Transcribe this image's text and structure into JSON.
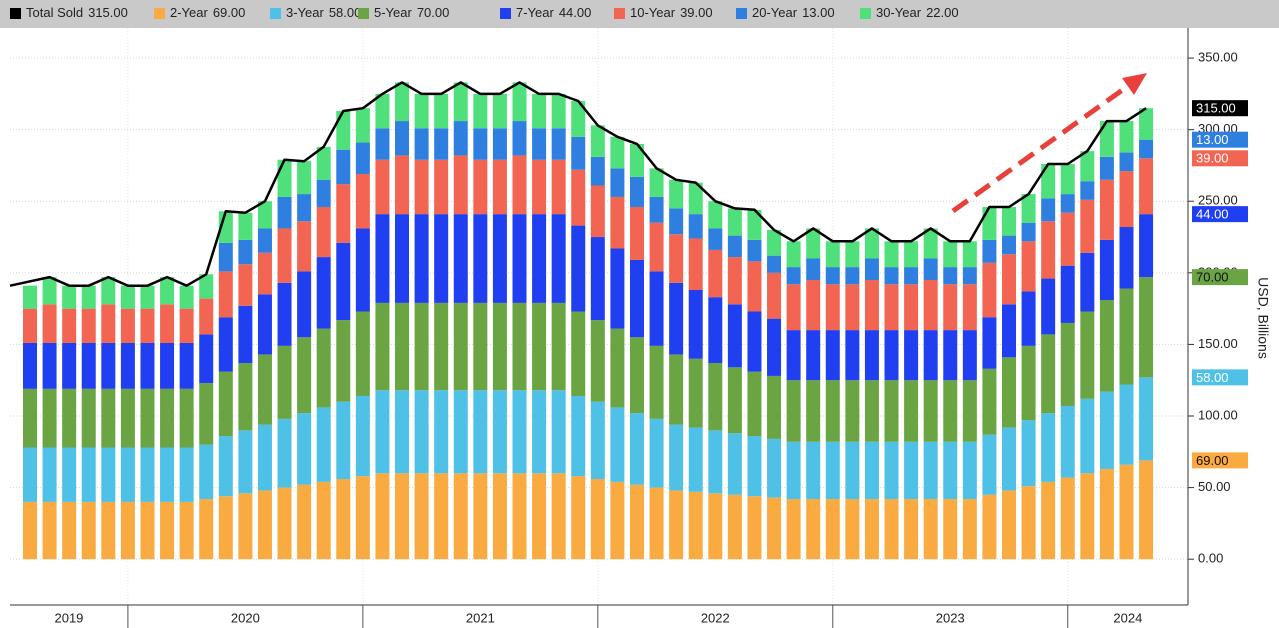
{
  "chart_data": {
    "type": "stacked_bar",
    "y_axis_label": "USD, Billions",
    "xticks": [
      "2019",
      "2020",
      "2021",
      "2022",
      "2023",
      "2024"
    ],
    "ylim": [
      -32,
      371
    ],
    "yticks": [
      {
        "value": 0,
        "label": "0.00"
      },
      {
        "value": 50,
        "label": "50.00"
      },
      {
        "value": 100,
        "label": "100.00"
      },
      {
        "value": 150,
        "label": "150.00"
      },
      {
        "value": 200,
        "label": "200.00"
      },
      {
        "value": 250,
        "label": "250.00"
      },
      {
        "value": 300,
        "label": "300.00"
      },
      {
        "value": 350,
        "label": "350.00"
      }
    ],
    "grid": true,
    "total": {
      "name": "Total Sold",
      "color": "#000000",
      "latest_label": "315.00",
      "values": [
        191,
        197,
        191,
        191,
        197,
        191,
        191,
        197,
        191,
        199,
        243,
        242,
        250,
        279,
        278,
        288,
        313,
        315,
        325,
        333,
        325,
        325,
        333,
        325,
        325,
        333,
        325,
        325,
        320,
        303,
        295,
        290,
        273,
        265,
        263,
        250,
        245,
        244,
        230,
        222,
        231,
        222,
        222,
        231,
        222,
        222,
        231,
        222,
        222,
        246,
        246,
        255,
        276,
        276,
        285,
        306,
        306,
        315
      ]
    },
    "series": [
      {
        "name": "2-Year",
        "color": "#f9ab42",
        "latest_label": "69.00",
        "values": [
          40,
          40,
          40,
          40,
          40,
          40,
          40,
          40,
          40,
          42,
          44,
          46,
          48,
          50,
          52,
          54,
          56,
          58,
          60,
          60,
          60,
          60,
          60,
          60,
          60,
          60,
          60,
          60,
          58,
          56,
          54,
          52,
          50,
          48,
          47,
          46,
          45,
          44,
          43,
          42,
          42,
          42,
          42,
          42,
          42,
          42,
          42,
          42,
          42,
          45,
          48,
          51,
          54,
          57,
          60,
          63,
          66,
          69
        ]
      },
      {
        "name": "3-Year",
        "color": "#4fc1e6",
        "latest_label": "58.00",
        "values": [
          38,
          38,
          38,
          38,
          38,
          38,
          38,
          38,
          38,
          38,
          42,
          44,
          46,
          48,
          50,
          52,
          54,
          56,
          58,
          58,
          58,
          58,
          58,
          58,
          58,
          58,
          58,
          58,
          56,
          54,
          52,
          50,
          48,
          46,
          45,
          44,
          43,
          42,
          41,
          40,
          40,
          40,
          40,
          40,
          40,
          40,
          40,
          40,
          40,
          42,
          44,
          46,
          48,
          50,
          52,
          54,
          56,
          58
        ]
      },
      {
        "name": "5-Year",
        "color": "#6aa443",
        "latest_label": "70.00",
        "values": [
          41,
          41,
          41,
          41,
          41,
          41,
          41,
          41,
          41,
          43,
          45,
          47,
          49,
          51,
          53,
          55,
          57,
          59,
          61,
          61,
          61,
          61,
          61,
          61,
          61,
          61,
          61,
          61,
          59,
          57,
          55,
          53,
          51,
          49,
          48,
          47,
          46,
          45,
          44,
          43,
          43,
          43,
          43,
          43,
          43,
          43,
          43,
          43,
          43,
          46,
          49,
          52,
          55,
          58,
          61,
          64,
          67,
          70
        ]
      },
      {
        "name": "7-Year",
        "color": "#1f3ff0",
        "latest_label": "44.00",
        "values": [
          32,
          32,
          32,
          32,
          32,
          32,
          32,
          32,
          32,
          34,
          38,
          40,
          42,
          44,
          46,
          50,
          54,
          58,
          62,
          62,
          62,
          62,
          62,
          62,
          62,
          62,
          62,
          62,
          60,
          58,
          56,
          54,
          52,
          50,
          48,
          46,
          44,
          42,
          40,
          35,
          35,
          35,
          35,
          35,
          35,
          35,
          35,
          35,
          35,
          36,
          37,
          38,
          39,
          40,
          41,
          42,
          43,
          44
        ]
      },
      {
        "name": "10-Year",
        "color": "#f26553",
        "latest_label": "39.00",
        "values": [
          24,
          27,
          24,
          24,
          27,
          24,
          24,
          27,
          24,
          25,
          32,
          29,
          29,
          38,
          35,
          35,
          41,
          38,
          38,
          41,
          38,
          38,
          41,
          38,
          38,
          41,
          38,
          38,
          39,
          36,
          36,
          37,
          34,
          34,
          36,
          33,
          33,
          35,
          32,
          32,
          35,
          32,
          32,
          35,
          32,
          32,
          35,
          32,
          32,
          38,
          35,
          35,
          40,
          37,
          37,
          42,
          39,
          39
        ]
      },
      {
        "name": "20-Year",
        "color": "#2f7fe0",
        "latest_label": "13.00",
        "values": [
          null,
          null,
          null,
          null,
          null,
          null,
          null,
          null,
          null,
          null,
          20,
          17,
          17,
          22,
          19,
          19,
          24,
          22,
          22,
          24,
          22,
          22,
          24,
          22,
          22,
          24,
          22,
          22,
          23,
          20,
          20,
          21,
          18,
          18,
          17,
          15,
          15,
          15,
          12,
          12,
          15,
          12,
          12,
          15,
          12,
          12,
          15,
          12,
          12,
          16,
          13,
          13,
          16,
          13,
          13,
          16,
          13,
          13
        ]
      },
      {
        "name": "30-Year",
        "color": "#4fe07b",
        "latest_label": "22.00",
        "values": [
          16,
          19,
          16,
          16,
          19,
          16,
          16,
          19,
          16,
          17,
          22,
          19,
          19,
          26,
          23,
          23,
          27,
          24,
          24,
          27,
          24,
          24,
          27,
          24,
          24,
          27,
          24,
          24,
          25,
          22,
          22,
          23,
          20,
          20,
          22,
          19,
          19,
          21,
          18,
          18,
          21,
          18,
          18,
          21,
          18,
          18,
          21,
          18,
          18,
          23,
          20,
          20,
          24,
          21,
          21,
          25,
          22,
          22
        ]
      }
    ]
  }
}
